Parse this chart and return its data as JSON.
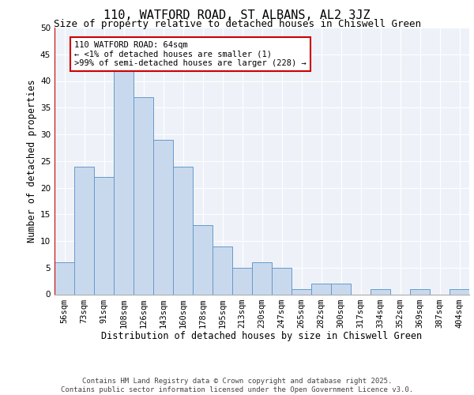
{
  "title1": "110, WATFORD ROAD, ST ALBANS, AL2 3JZ",
  "title2": "Size of property relative to detached houses in Chiswell Green",
  "xlabel": "Distribution of detached houses by size in Chiswell Green",
  "ylabel": "Number of detached properties",
  "categories": [
    "56sqm",
    "73sqm",
    "91sqm",
    "108sqm",
    "126sqm",
    "143sqm",
    "160sqm",
    "178sqm",
    "195sqm",
    "213sqm",
    "230sqm",
    "247sqm",
    "265sqm",
    "282sqm",
    "300sqm",
    "317sqm",
    "334sqm",
    "352sqm",
    "369sqm",
    "387sqm",
    "404sqm"
  ],
  "values": [
    6,
    24,
    22,
    42,
    37,
    29,
    24,
    13,
    9,
    5,
    6,
    5,
    1,
    2,
    2,
    0,
    1,
    0,
    1,
    0,
    1
  ],
  "bar_color": "#c9d9ed",
  "bar_edge_color": "#6699cc",
  "highlight_color": "#cc0000",
  "annotation_text": "110 WATFORD ROAD: 64sqm\n← <1% of detached houses are smaller (1)\n>99% of semi-detached houses are larger (228) →",
  "annotation_box_color": "#ffffff",
  "annotation_box_edge_color": "#cc0000",
  "ylim": [
    0,
    50
  ],
  "yticks": [
    0,
    5,
    10,
    15,
    20,
    25,
    30,
    35,
    40,
    45,
    50
  ],
  "footer": "Contains HM Land Registry data © Crown copyright and database right 2025.\nContains public sector information licensed under the Open Government Licence v3.0.",
  "bg_color": "#eef2f8",
  "grid_color": "#ffffff",
  "title1_fontsize": 11,
  "title2_fontsize": 9,
  "axis_label_fontsize": 8.5,
  "tick_fontsize": 7.5,
  "footer_fontsize": 6.5
}
